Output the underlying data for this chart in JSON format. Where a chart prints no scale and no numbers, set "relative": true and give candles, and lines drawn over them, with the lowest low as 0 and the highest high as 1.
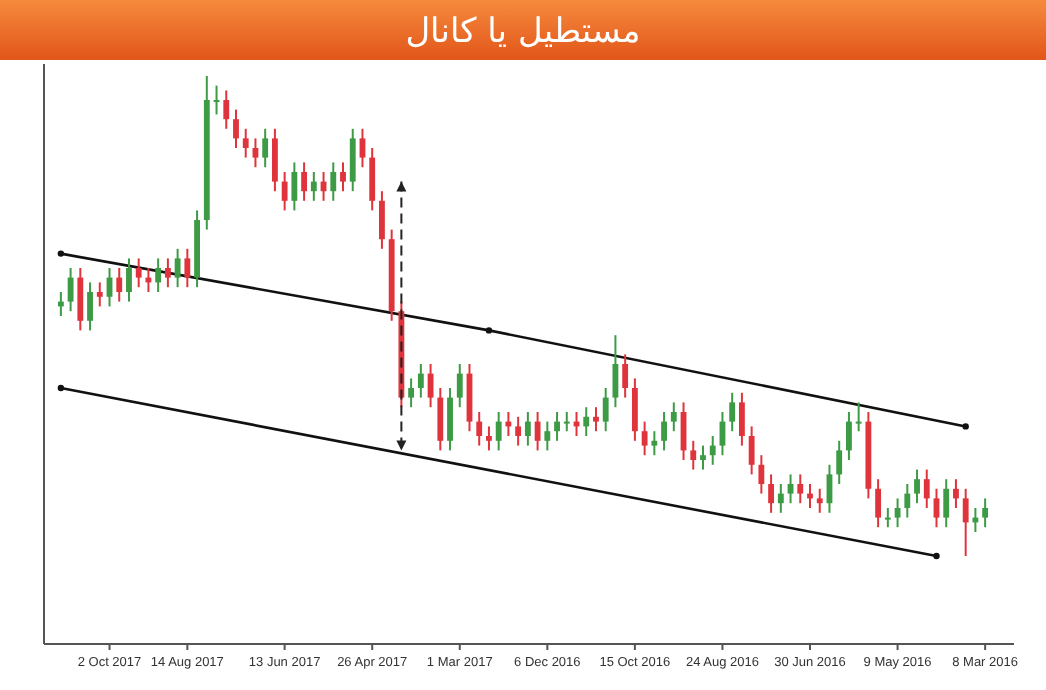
{
  "chart_data": {
    "type": "candlestick",
    "title": "مستطیل یا کانال",
    "relative": true,
    "categories": [
      null,
      null,
      null,
      null,
      null,
      "2 Oct 2017",
      null,
      null,
      null,
      null,
      null,
      null,
      null,
      "14 Aug 2017",
      null,
      null,
      null,
      null,
      null,
      null,
      null,
      null,
      null,
      "13 Jun 2017",
      null,
      null,
      null,
      null,
      null,
      null,
      null,
      null,
      "26 Apr 2017",
      null,
      null,
      null,
      null,
      null,
      null,
      null,
      null,
      "1 Mar 2017",
      null,
      null,
      null,
      null,
      null,
      null,
      null,
      null,
      "6 Dec 2016",
      null,
      null,
      null,
      null,
      null,
      null,
      null,
      null,
      "15 Oct 2016",
      null,
      null,
      null,
      null,
      null,
      null,
      null,
      null,
      "24 Aug 2016",
      null,
      null,
      null,
      null,
      null,
      null,
      null,
      null,
      "30 Jun 2016",
      null,
      null,
      null,
      null,
      null,
      null,
      null,
      null,
      "9 May 2016",
      null,
      null,
      null,
      null,
      null,
      null,
      null,
      null,
      "8 Mar 2016"
    ],
    "ohlc": [
      [
        0.52,
        0.55,
        0.5,
        0.53
      ],
      [
        0.53,
        0.6,
        0.51,
        0.58
      ],
      [
        0.58,
        0.6,
        0.47,
        0.49
      ],
      [
        0.49,
        0.57,
        0.47,
        0.55
      ],
      [
        0.55,
        0.57,
        0.52,
        0.54
      ],
      [
        0.54,
        0.6,
        0.52,
        0.58
      ],
      [
        0.58,
        0.6,
        0.53,
        0.55
      ],
      [
        0.55,
        0.62,
        0.53,
        0.6
      ],
      [
        0.6,
        0.62,
        0.56,
        0.58
      ],
      [
        0.58,
        0.6,
        0.55,
        0.57
      ],
      [
        0.57,
        0.62,
        0.55,
        0.6
      ],
      [
        0.6,
        0.62,
        0.56,
        0.58
      ],
      [
        0.58,
        0.64,
        0.56,
        0.62
      ],
      [
        0.62,
        0.64,
        0.56,
        0.58
      ],
      [
        0.58,
        0.72,
        0.56,
        0.7
      ],
      [
        0.7,
        1,
        0.68,
        0.95
      ],
      [
        0.95,
        0.98,
        0.92,
        0.95
      ],
      [
        0.95,
        0.97,
        0.89,
        0.91
      ],
      [
        0.91,
        0.93,
        0.85,
        0.87
      ],
      [
        0.87,
        0.89,
        0.83,
        0.85
      ],
      [
        0.85,
        0.87,
        0.81,
        0.83
      ],
      [
        0.83,
        0.89,
        0.81,
        0.87
      ],
      [
        0.87,
        0.89,
        0.76,
        0.78
      ],
      [
        0.78,
        0.8,
        0.72,
        0.74
      ],
      [
        0.74,
        0.82,
        0.72,
        0.8
      ],
      [
        0.8,
        0.82,
        0.74,
        0.76
      ],
      [
        0.76,
        0.8,
        0.74,
        0.78
      ],
      [
        0.78,
        0.8,
        0.74,
        0.76
      ],
      [
        0.76,
        0.82,
        0.74,
        0.8
      ],
      [
        0.8,
        0.82,
        0.76,
        0.78
      ],
      [
        0.78,
        0.89,
        0.76,
        0.87
      ],
      [
        0.87,
        0.89,
        0.81,
        0.83
      ],
      [
        0.83,
        0.85,
        0.72,
        0.74
      ],
      [
        0.74,
        0.76,
        0.64,
        0.66
      ],
      [
        0.66,
        0.68,
        0.49,
        0.51
      ],
      [
        0.51,
        0.53,
        0.31,
        0.33
      ],
      [
        0.33,
        0.37,
        0.31,
        0.35
      ],
      [
        0.35,
        0.4,
        0.33,
        0.38
      ],
      [
        0.38,
        0.4,
        0.31,
        0.33
      ],
      [
        0.33,
        0.35,
        0.22,
        0.24
      ],
      [
        0.24,
        0.35,
        0.22,
        0.33
      ],
      [
        0.33,
        0.4,
        0.31,
        0.38
      ],
      [
        0.38,
        0.4,
        0.26,
        0.28
      ],
      [
        0.28,
        0.3,
        0.23,
        0.25
      ],
      [
        0.25,
        0.27,
        0.22,
        0.24
      ],
      [
        0.24,
        0.3,
        0.22,
        0.28
      ],
      [
        0.28,
        0.3,
        0.25,
        0.27
      ],
      [
        0.27,
        0.29,
        0.23,
        0.25
      ],
      [
        0.25,
        0.3,
        0.23,
        0.28
      ],
      [
        0.28,
        0.3,
        0.22,
        0.24
      ],
      [
        0.24,
        0.28,
        0.22,
        0.26
      ],
      [
        0.26,
        0.3,
        0.24,
        0.28
      ],
      [
        0.28,
        0.3,
        0.26,
        0.28
      ],
      [
        0.28,
        0.3,
        0.25,
        0.27
      ],
      [
        0.27,
        0.31,
        0.25,
        0.29
      ],
      [
        0.29,
        0.31,
        0.26,
        0.28
      ],
      [
        0.28,
        0.35,
        0.26,
        0.33
      ],
      [
        0.33,
        0.46,
        0.31,
        0.4
      ],
      [
        0.4,
        0.42,
        0.33,
        0.35
      ],
      [
        0.35,
        0.37,
        0.24,
        0.26
      ],
      [
        0.26,
        0.28,
        0.21,
        0.23
      ],
      [
        0.23,
        0.26,
        0.21,
        0.24
      ],
      [
        0.24,
        0.3,
        0.22,
        0.28
      ],
      [
        0.28,
        0.32,
        0.26,
        0.3
      ],
      [
        0.3,
        0.32,
        0.2,
        0.22
      ],
      [
        0.22,
        0.24,
        0.18,
        0.2
      ],
      [
        0.2,
        0.23,
        0.18,
        0.21
      ],
      [
        0.21,
        0.25,
        0.19,
        0.23
      ],
      [
        0.23,
        0.3,
        0.21,
        0.28
      ],
      [
        0.28,
        0.34,
        0.26,
        0.32
      ],
      [
        0.32,
        0.34,
        0.23,
        0.25
      ],
      [
        0.25,
        0.27,
        0.17,
        0.19
      ],
      [
        0.19,
        0.21,
        0.13,
        0.15
      ],
      [
        0.15,
        0.17,
        0.09,
        0.11
      ],
      [
        0.11,
        0.15,
        0.09,
        0.13
      ],
      [
        0.13,
        0.17,
        0.11,
        0.15
      ],
      [
        0.15,
        0.17,
        0.11,
        0.13
      ],
      [
        0.13,
        0.15,
        0.1,
        0.12
      ],
      [
        0.12,
        0.14,
        0.09,
        0.11
      ],
      [
        0.11,
        0.19,
        0.09,
        0.17
      ],
      [
        0.17,
        0.24,
        0.15,
        0.22
      ],
      [
        0.22,
        0.3,
        0.2,
        0.28
      ],
      [
        0.28,
        0.32,
        0.26,
        0.28
      ],
      [
        0.28,
        0.3,
        0.12,
        0.14
      ],
      [
        0.14,
        0.16,
        0.06,
        0.08
      ],
      [
        0.08,
        0.1,
        0.06,
        0.08
      ],
      [
        0.08,
        0.12,
        0.06,
        0.1
      ],
      [
        0.1,
        0.15,
        0.08,
        0.13
      ],
      [
        0.13,
        0.18,
        0.11,
        0.16
      ],
      [
        0.16,
        0.18,
        0.1,
        0.12
      ],
      [
        0.12,
        0.14,
        0.06,
        0.08
      ],
      [
        0.08,
        0.16,
        0.06,
        0.14
      ],
      [
        0.14,
        0.16,
        0.1,
        0.12
      ],
      [
        0.12,
        0.14,
        0,
        0.07
      ],
      [
        0.07,
        0.1,
        0.05,
        0.08
      ],
      [
        0.08,
        0.12,
        0.06,
        0.1
      ]
    ],
    "series": [
      {
        "type": "line",
        "color": "#111111",
        "marker": "circle",
        "values": [
          0.63,
          null,
          null,
          null,
          null,
          null,
          null,
          null,
          null,
          null,
          null,
          null,
          null,
          null,
          null,
          null,
          null,
          null,
          null,
          null,
          null,
          null,
          null,
          null,
          null,
          null,
          null,
          null,
          null,
          null,
          null,
          null,
          null,
          null,
          null,
          null,
          null,
          null,
          null,
          null,
          null,
          null,
          null,
          null,
          0.47,
          null,
          null,
          null,
          null,
          null,
          null,
          null,
          null,
          null,
          null,
          null,
          null,
          null,
          null,
          null,
          null,
          null,
          null,
          null,
          null,
          null,
          null,
          null,
          null,
          null,
          null,
          null,
          null,
          null,
          null,
          null,
          null,
          null,
          null,
          null,
          null,
          null,
          null,
          null,
          null,
          null,
          null,
          null,
          null,
          null,
          null,
          null,
          null,
          0.27,
          null,
          null
        ]
      },
      {
        "type": "line",
        "color": "#111111",
        "marker": "circle",
        "values": [
          0.35,
          null,
          null,
          null,
          null,
          null,
          null,
          null,
          null,
          null,
          null,
          null,
          null,
          null,
          null,
          null,
          null,
          null,
          null,
          null,
          null,
          null,
          null,
          null,
          null,
          null,
          null,
          null,
          null,
          null,
          null,
          null,
          null,
          null,
          null,
          null,
          null,
          null,
          null,
          null,
          null,
          null,
          null,
          null,
          null,
          null,
          null,
          null,
          null,
          null,
          null,
          null,
          null,
          null,
          null,
          null,
          null,
          null,
          null,
          null,
          null,
          null,
          null,
          null,
          null,
          null,
          null,
          null,
          null,
          null,
          null,
          null,
          null,
          null,
          null,
          null,
          null,
          null,
          null,
          null,
          null,
          null,
          null,
          null,
          null,
          null,
          null,
          null,
          null,
          null,
          0,
          null,
          null,
          null,
          null,
          null
        ]
      }
    ]
  }
}
